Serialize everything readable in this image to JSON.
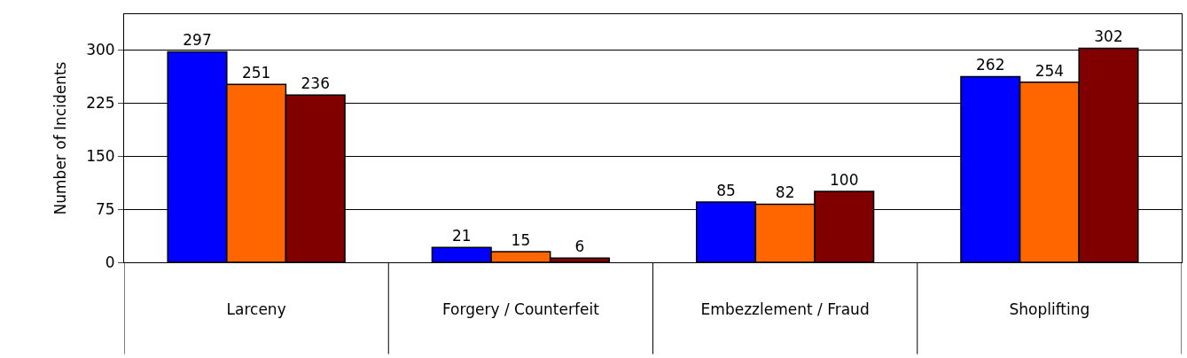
{
  "chart_data": {
    "type": "bar",
    "ylabel": "Number of Incidents",
    "categories": [
      "Larceny",
      "Forgery / Counterfeit",
      "Embezzlement / Fraud",
      "Shoplifting"
    ],
    "series": [
      {
        "color": "#0000ff",
        "values": [
          297,
          21,
          85,
          262
        ]
      },
      {
        "color": "#ff6600",
        "values": [
          251,
          15,
          82,
          254
        ]
      },
      {
        "color": "#800000",
        "values": [
          236,
          6,
          100,
          302
        ]
      }
    ],
    "ylim": [
      0,
      350
    ],
    "yticks": [
      0,
      75,
      150,
      225,
      300
    ],
    "grid": "y",
    "data_labels": true
  }
}
